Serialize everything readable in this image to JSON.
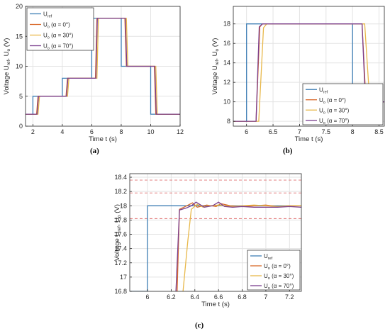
{
  "chart_data": [
    {
      "type": "line",
      "caption": "(a)",
      "xlabel": "Time t (s)",
      "ylabel_parts": [
        "Voltage U",
        "ref",
        ", U",
        "o",
        " (V)"
      ],
      "xlim": [
        1.5,
        12
      ],
      "ylim": [
        0,
        20
      ],
      "xticks": [
        2,
        4,
        6,
        8,
        10,
        12
      ],
      "yticks": [
        0,
        5,
        10,
        15,
        20
      ],
      "grid": true,
      "legend_position": "top-left",
      "legend": [
        {
          "main": "U",
          "sub": "ref",
          "rest": ""
        },
        {
          "main": "U",
          "sub": "o",
          "rest": " (α = 0°)"
        },
        {
          "main": "U",
          "sub": "o",
          "rest": " (α = 30°)"
        },
        {
          "main": "U",
          "sub": "o",
          "rest": " (α = 70°)"
        }
      ],
      "series": [
        {
          "color": "#3f7fb5",
          "x": [
            1.5,
            2,
            2,
            4,
            4,
            6,
            6,
            8,
            8,
            10,
            10,
            12
          ],
          "y": [
            2,
            2,
            5,
            5,
            8,
            8,
            18,
            18,
            10,
            10,
            2,
            2
          ]
        },
        {
          "color": "#d9692a",
          "x": [
            1.5,
            2.25,
            2.35,
            4.25,
            4.35,
            6.25,
            6.35,
            8.25,
            8.35,
            10.25,
            10.35,
            12
          ],
          "y": [
            2,
            2,
            5,
            5,
            8,
            8,
            18,
            18,
            10,
            10,
            2,
            2
          ]
        },
        {
          "color": "#e8b84a",
          "x": [
            1.5,
            2.35,
            2.45,
            4.35,
            4.45,
            6.35,
            6.45,
            8.35,
            8.45,
            10.35,
            10.45,
            12
          ],
          "y": [
            2,
            2,
            5,
            5,
            8,
            8,
            18,
            18,
            10,
            10,
            2,
            2
          ]
        },
        {
          "color": "#7b3f8e",
          "x": [
            1.5,
            2.28,
            2.38,
            4.28,
            4.38,
            6.28,
            6.38,
            8.28,
            8.38,
            10.28,
            10.38,
            12
          ],
          "y": [
            2,
            2,
            5,
            5,
            8,
            8,
            18,
            18,
            10,
            10,
            2,
            2
          ]
        }
      ]
    },
    {
      "type": "line",
      "caption": "(b)",
      "xlabel": "Time t (s)",
      "ylabel_parts": [
        "Voltage U",
        "ref",
        ", U",
        "o",
        " (V)"
      ],
      "xlim": [
        5.75,
        8.6
      ],
      "ylim": [
        7.5,
        19.8
      ],
      "xticks": [
        6,
        6.5,
        7,
        7.5,
        8,
        8.5
      ],
      "yticks": [
        8,
        10,
        12,
        14,
        16,
        18
      ],
      "grid": true,
      "legend_position": "bottom-right",
      "legend": [
        {
          "main": "U",
          "sub": "ref",
          "rest": ""
        },
        {
          "main": "U",
          "sub": "o",
          "rest": " (α = 0°)"
        },
        {
          "main": "U",
          "sub": "o",
          "rest": " (α = 30°)"
        },
        {
          "main": "U",
          "sub": "o",
          "rest": " (α = 70°)"
        }
      ],
      "series": [
        {
          "color": "#3f7fb5",
          "x": [
            5.75,
            6,
            6,
            8,
            8,
            8.6
          ],
          "y": [
            8,
            8,
            18,
            18,
            10,
            10
          ]
        },
        {
          "color": "#d9692a",
          "x": [
            5.75,
            6.18,
            6.25,
            6.3,
            8.18,
            8.25,
            8.3,
            8.6
          ],
          "y": [
            8,
            8,
            17.7,
            18,
            18,
            10.4,
            10,
            10
          ]
        },
        {
          "color": "#e8b84a",
          "x": [
            5.75,
            6.23,
            6.32,
            6.38,
            8.23,
            8.32,
            8.38,
            8.6
          ],
          "y": [
            8,
            8,
            17.6,
            18,
            18,
            10.4,
            10,
            10
          ]
        },
        {
          "color": "#7b3f8e",
          "x": [
            5.75,
            6.18,
            6.24,
            6.3,
            8.18,
            8.24,
            8.3,
            8.6
          ],
          "y": [
            8,
            8,
            17.7,
            18,
            18,
            10.4,
            10,
            10
          ]
        }
      ]
    },
    {
      "type": "line",
      "caption": "(c)",
      "xlabel": "Time t (s)",
      "ylabel_parts": [
        "Voltage U",
        "ref",
        ", U",
        "o",
        " (V)"
      ],
      "xlim": [
        5.85,
        7.3
      ],
      "ylim": [
        16.8,
        18.45
      ],
      "xticks": [
        6,
        6.2,
        6.4,
        6.6,
        6.8,
        7,
        7.2
      ],
      "yticks": [
        16.8,
        17,
        17.2,
        17.4,
        17.6,
        17.8,
        18,
        18.2,
        18.4
      ],
      "grid": true,
      "legend_position": "bottom-right",
      "reference_lines": [
        18.36,
        18.18,
        17.82
      ],
      "reference_color": "#e07070",
      "legend": [
        {
          "main": "U",
          "sub": "ref",
          "rest": ""
        },
        {
          "main": "U",
          "sub": "o",
          "rest": " (α = 0°)"
        },
        {
          "main": "U",
          "sub": "o",
          "rest": " (α = 30°)"
        },
        {
          "main": "U",
          "sub": "o",
          "rest": " (α = 70°)"
        }
      ],
      "series": [
        {
          "color": "#3f7fb5",
          "x": [
            5.85,
            6,
            6,
            7.3
          ],
          "y": [
            16.8,
            16.8,
            18,
            18
          ]
        },
        {
          "color": "#d9692a",
          "x": [
            6.25,
            6.27,
            6.32,
            6.38,
            6.42,
            6.5,
            6.58,
            6.62,
            6.7,
            6.8,
            6.9,
            7,
            7.1,
            7.2,
            7.3
          ],
          "y": [
            16.8,
            17.95,
            17.99,
            18.04,
            17.98,
            18.01,
            17.99,
            18.03,
            18.0,
            17.99,
            18.0,
            18.01,
            17.99,
            18.0,
            18.0
          ]
        },
        {
          "color": "#e8b84a",
          "x": [
            6.3,
            6.34,
            6.37,
            6.42,
            6.47,
            6.52,
            6.6,
            6.65,
            6.72,
            6.8,
            6.9,
            7,
            7.1,
            7.2,
            7.3
          ],
          "y": [
            16.8,
            17.5,
            17.95,
            18.02,
            17.98,
            18.0,
            18.01,
            18.0,
            17.99,
            18.0,
            18.01,
            18.0,
            17.99,
            18.0,
            18.0
          ]
        },
        {
          "color": "#7b3f8e",
          "x": [
            6.24,
            6.27,
            6.33,
            6.37,
            6.41,
            6.48,
            6.55,
            6.6,
            6.65,
            6.72,
            6.8,
            6.9,
            7,
            7.1,
            7.2,
            7.3
          ],
          "y": [
            16.8,
            17.94,
            17.97,
            18.0,
            18.05,
            17.98,
            18.0,
            18.05,
            17.99,
            17.98,
            17.99,
            17.98,
            17.98,
            17.98,
            17.99,
            17.98
          ]
        }
      ]
    }
  ]
}
